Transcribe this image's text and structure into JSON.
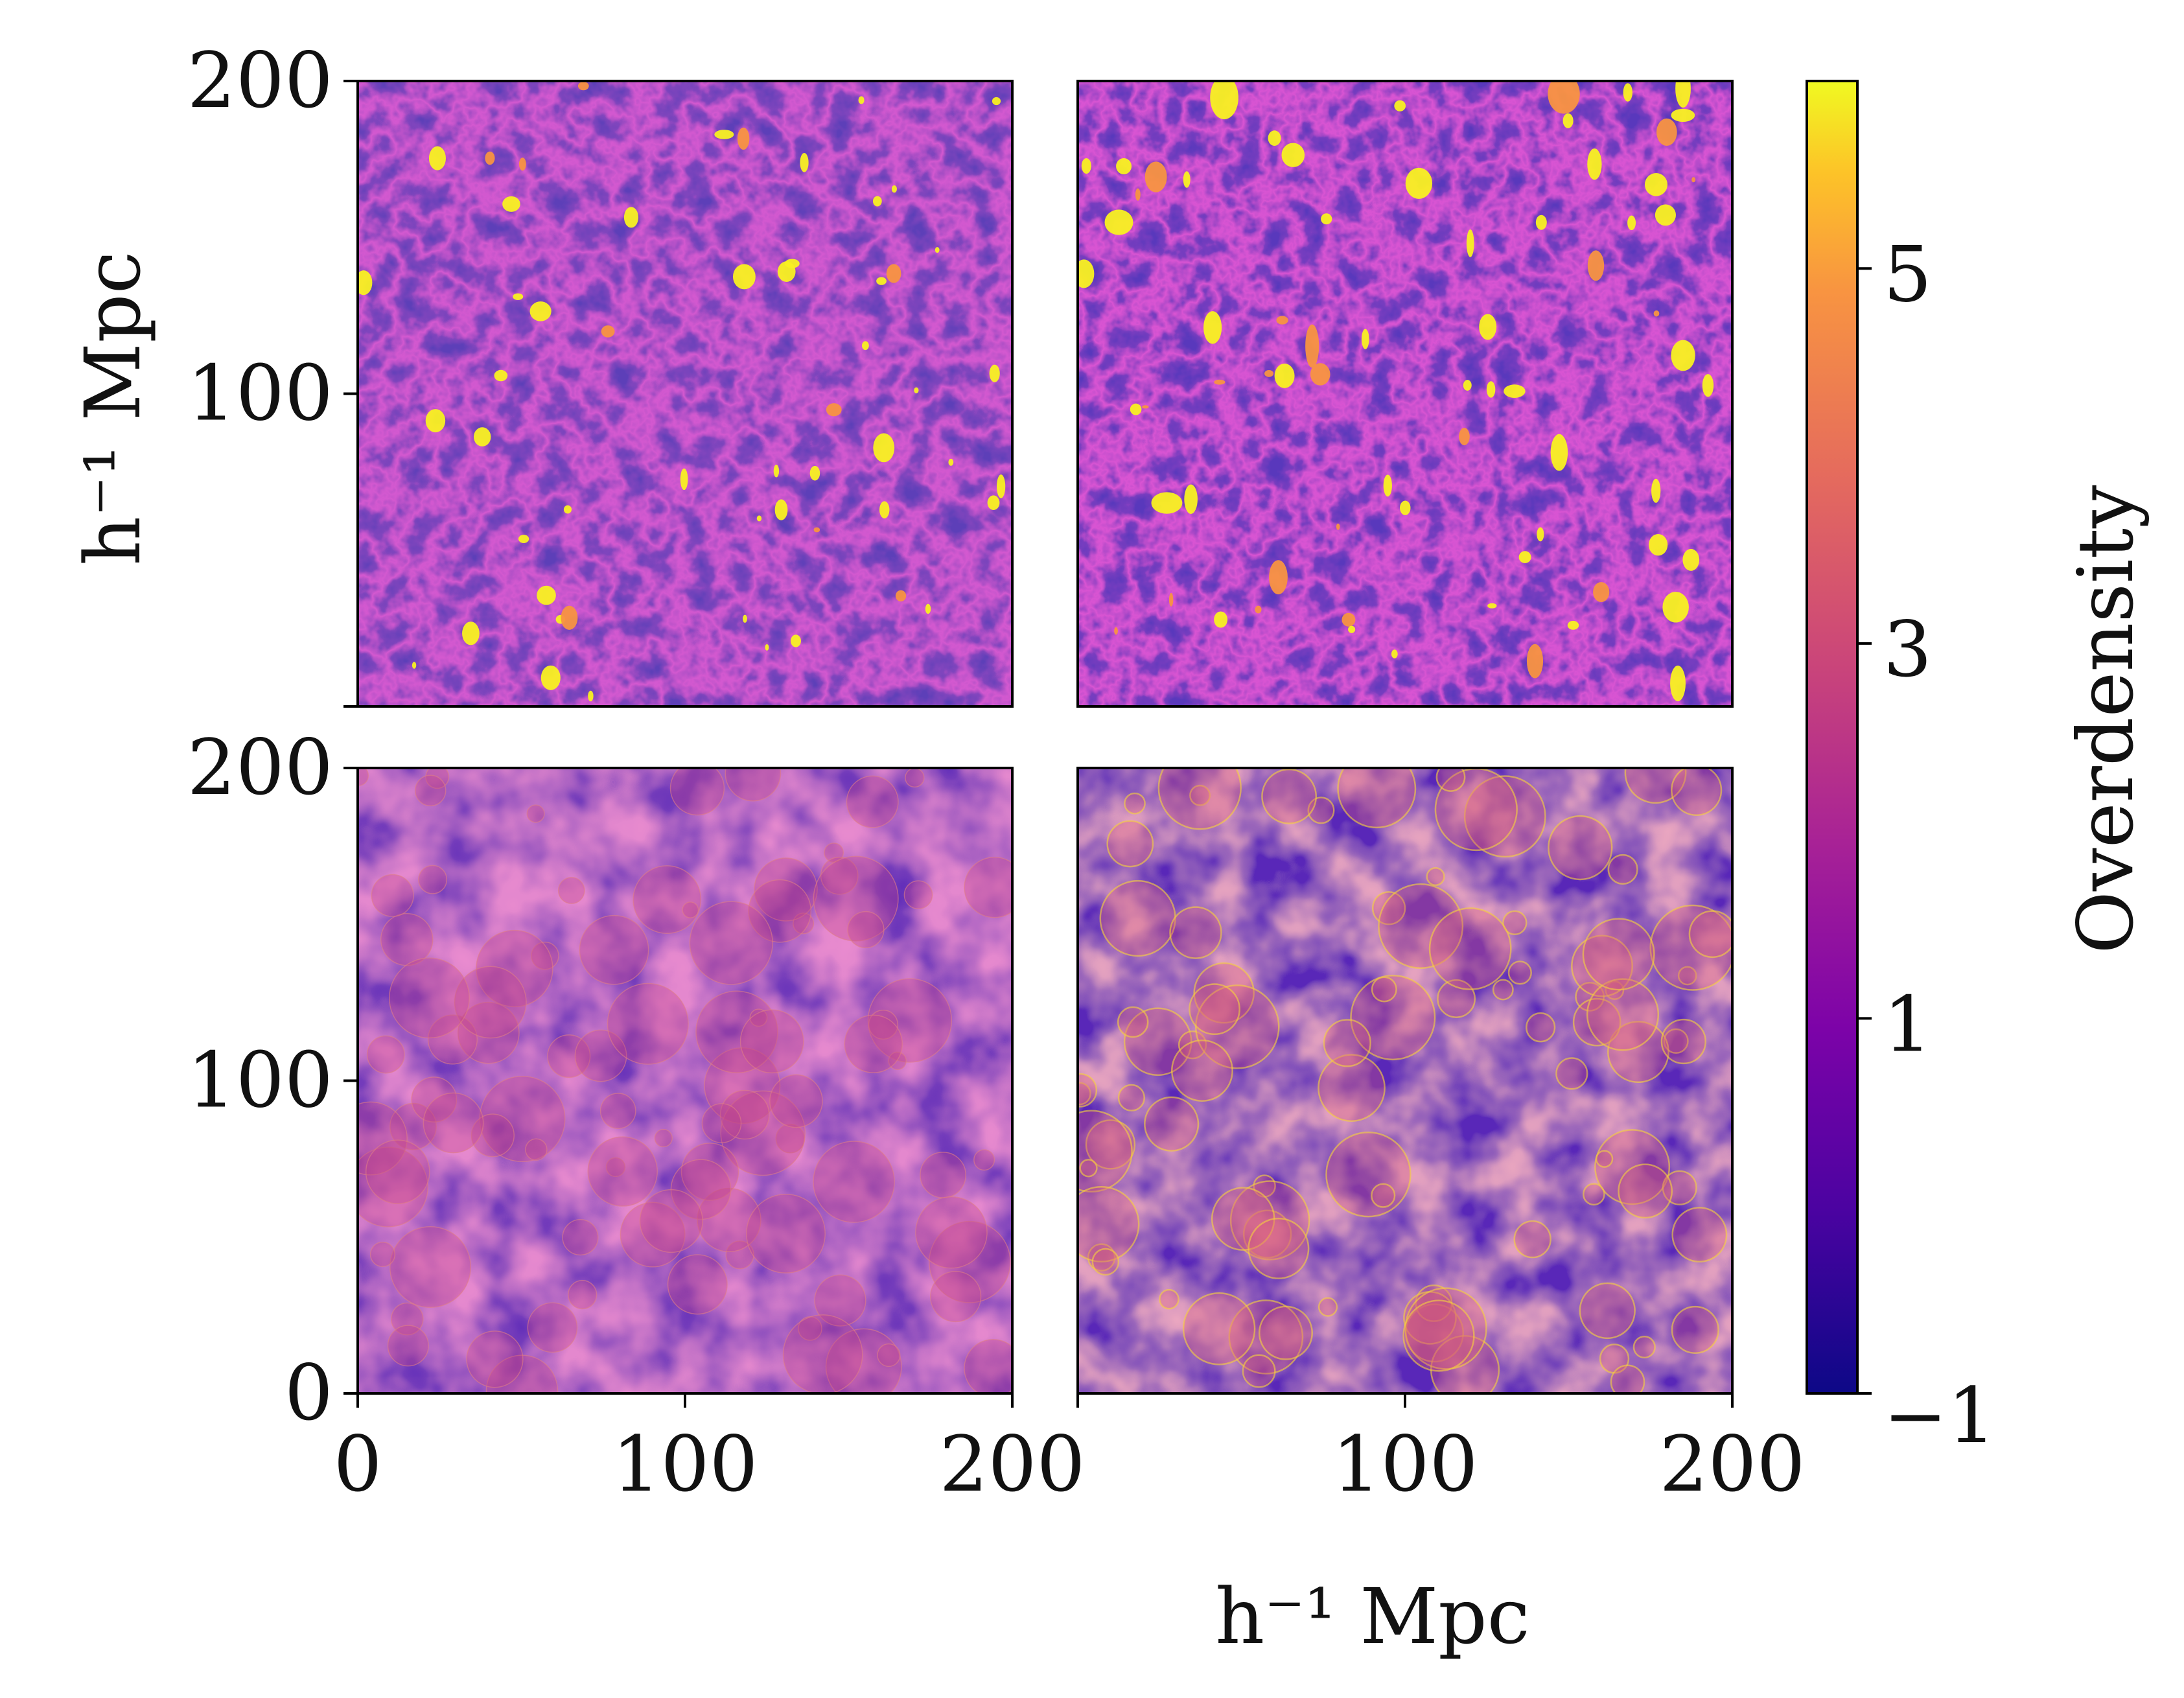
{
  "chart_data": {
    "type": "heatmap",
    "layout": "2x2 grid of density maps with shared colorbar",
    "colormap": "plasma",
    "panels": [
      {
        "row": 0,
        "col": 0,
        "texture": "filaments",
        "xlim": [
          0,
          200
        ],
        "ylim": [
          0,
          200
        ]
      },
      {
        "row": 0,
        "col": 1,
        "texture": "filaments-halos",
        "xlim": [
          0,
          200
        ],
        "ylim": [
          0,
          200
        ]
      },
      {
        "row": 1,
        "col": 0,
        "texture": "bubbles",
        "xlim": [
          0,
          200
        ],
        "ylim": [
          0,
          200
        ]
      },
      {
        "row": 1,
        "col": 1,
        "texture": "bubbles-edges",
        "xlim": [
          0,
          200
        ],
        "ylim": [
          0,
          200
        ]
      }
    ],
    "xlabel": "h⁻¹ Mpc",
    "ylabel": "h⁻¹ Mpc",
    "x_ticks": [
      "0",
      "100",
      "200"
    ],
    "x_tick_values": [
      0,
      100,
      200
    ],
    "y_ticks": [
      "0",
      "100",
      "200"
    ],
    "y_tick_values": [
      0,
      100,
      200
    ],
    "colorbar": {
      "label": "Overdensity",
      "range": [
        -1,
        6
      ],
      "ticks": [
        "−1",
        "1",
        "3",
        "5"
      ],
      "tick_values": [
        -1,
        1,
        3,
        5
      ]
    },
    "colors": {
      "low": "#1b0c6e",
      "mid": "#8a0ca5",
      "midhigh": "#e0607a",
      "high": "#f9f121"
    }
  }
}
